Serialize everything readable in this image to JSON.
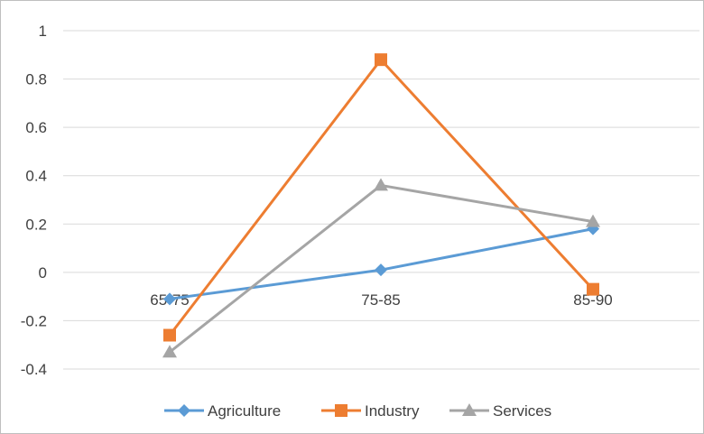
{
  "chart_data": {
    "type": "line",
    "categories": [
      "65-75",
      "75-85",
      "85-90"
    ],
    "series": [
      {
        "name": "Agriculture",
        "values": [
          -0.11,
          0.01,
          0.18
        ],
        "color": "#5b9bd5",
        "marker": "diamond"
      },
      {
        "name": "Industry",
        "values": [
          -0.26,
          0.88,
          -0.07
        ],
        "color": "#ed7d31",
        "marker": "square"
      },
      {
        "name": "Services",
        "values": [
          -0.33,
          0.36,
          0.21
        ],
        "color": "#a5a5a5",
        "marker": "triangle"
      }
    ],
    "y_ticks": [
      "1",
      "0.8",
      "0.6",
      "0.4",
      "0.2",
      "0",
      "-0.2",
      "-0.4"
    ],
    "ylim": [
      -0.4,
      1
    ],
    "grid": true,
    "legend_position": "bottom"
  }
}
